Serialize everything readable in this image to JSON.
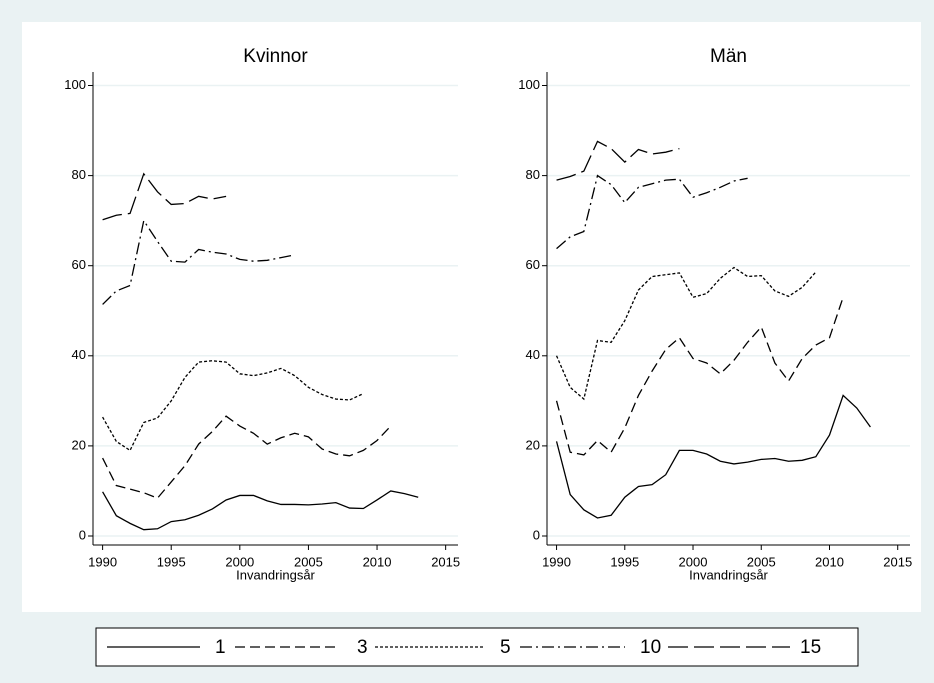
{
  "chart_data": [
    {
      "type": "line",
      "title": "Kvinnor",
      "x_label": "Invandringsår",
      "x": [
        1990,
        1991,
        1992,
        1993,
        1994,
        1995,
        1996,
        1997,
        1998,
        1999,
        2000,
        2001,
        2002,
        2003,
        2004,
        2005,
        2006,
        2007,
        2008,
        2009,
        2010,
        2011,
        2012,
        2013
      ],
      "xlim": [
        1989.3,
        2015.9
      ],
      "xticks": [
        1990,
        1995,
        2000,
        2005,
        2010,
        2015
      ],
      "ylim": [
        -2,
        103
      ],
      "yticks": [
        0,
        20,
        40,
        60,
        80,
        100
      ],
      "grid": true,
      "series": [
        {
          "name": "1",
          "color": "#000000",
          "dash": "none",
          "values": [
            9.8,
            4.5,
            2.8,
            1.4,
            1.6,
            3.2,
            3.6,
            4.6,
            6,
            8,
            9,
            9,
            7.8,
            7,
            7,
            6.9,
            7.1,
            7.4,
            6.2,
            6.1,
            8,
            10,
            9.4,
            8.6
          ]
        },
        {
          "name": "3",
          "color": "#000000",
          "dash": "10,5",
          "values": [
            17.3,
            11.2,
            10.4,
            9.6,
            8.4,
            12,
            15.6,
            20.4,
            23.2,
            26.6,
            24.4,
            22.8,
            20.4,
            21.8,
            22.8,
            22,
            19.3,
            18.2,
            17.8,
            19,
            21.2,
            24.4,
            null,
            null
          ]
        },
        {
          "name": "5",
          "color": "#000000",
          "dash": "3,2",
          "values": [
            26.4,
            21,
            19,
            25.2,
            26.2,
            30,
            35.2,
            38.6,
            38.9,
            38.6,
            36,
            35.6,
            36.2,
            37.2,
            35.6,
            33,
            31.4,
            30.4,
            30.2,
            31.6,
            null,
            null,
            null,
            null
          ]
        },
        {
          "name": "10",
          "color": "#000000",
          "dash": "12,4,2,4",
          "values": [
            51.4,
            54.4,
            55.6,
            70,
            65.4,
            61,
            60.8,
            63.6,
            63,
            62.6,
            61.4,
            61,
            61.2,
            61.8,
            62.4,
            null,
            null,
            null,
            null,
            null,
            null,
            null,
            null,
            null
          ]
        },
        {
          "name": "15",
          "color": "#000000",
          "dash": "20,6",
          "values": [
            70.2,
            71.2,
            71.6,
            80.4,
            76.4,
            73.6,
            73.8,
            75.4,
            74.8,
            75.4,
            null,
            null,
            null,
            null,
            null,
            null,
            null,
            null,
            null,
            null,
            null,
            null,
            null,
            null
          ]
        }
      ]
    },
    {
      "type": "line",
      "title": "Män",
      "x_label": "Invandringsår",
      "x": [
        1990,
        1991,
        1992,
        1993,
        1994,
        1995,
        1996,
        1997,
        1998,
        1999,
        2000,
        2001,
        2002,
        2003,
        2004,
        2005,
        2006,
        2007,
        2008,
        2009,
        2010,
        2011,
        2012,
        2013
      ],
      "xlim": [
        1989.3,
        2015.9
      ],
      "xticks": [
        1990,
        1995,
        2000,
        2005,
        2010,
        2015
      ],
      "ylim": [
        -2,
        103
      ],
      "yticks": [
        0,
        20,
        40,
        60,
        80,
        100
      ],
      "grid": true,
      "series": [
        {
          "name": "1",
          "color": "#000000",
          "dash": "none",
          "values": [
            21,
            9.2,
            5.8,
            4,
            4.6,
            8.6,
            11,
            11.4,
            13.6,
            19,
            19,
            18.2,
            16.6,
            16,
            16.4,
            17,
            17.2,
            16.6,
            16.8,
            17.6,
            22.4,
            31.2,
            28.4,
            24.2
          ]
        },
        {
          "name": "3",
          "color": "#000000",
          "dash": "10,5",
          "values": [
            30,
            18.6,
            18,
            21.2,
            18.6,
            24,
            31.2,
            36.6,
            41.4,
            44,
            39.4,
            38.4,
            36,
            39,
            43,
            46.4,
            38.4,
            34.4,
            39.4,
            42.4,
            44,
            53,
            null,
            null
          ]
        },
        {
          "name": "5",
          "color": "#000000",
          "dash": "3,2",
          "values": [
            40,
            33,
            30.4,
            43.4,
            43,
            47.8,
            54.6,
            57.6,
            58,
            58.4,
            53,
            53.8,
            57.2,
            59.6,
            57.6,
            57.8,
            54.4,
            53.2,
            55.2,
            58.6,
            null,
            null,
            null,
            null
          ]
        },
        {
          "name": "10",
          "color": "#000000",
          "dash": "12,4,2,4",
          "values": [
            63.8,
            66.4,
            67.6,
            80,
            78,
            74,
            77.4,
            78.2,
            79,
            79.2,
            75.2,
            76.2,
            77.4,
            78.8,
            79.4,
            null,
            null,
            null,
            null,
            null,
            null,
            null,
            null,
            null
          ]
        },
        {
          "name": "15",
          "color": "#000000",
          "dash": "20,6",
          "values": [
            79,
            79.8,
            81,
            87.6,
            86,
            83,
            85.8,
            84.8,
            85.2,
            86,
            null,
            null,
            null,
            null,
            null,
            null,
            null,
            null,
            null,
            null,
            null,
            null,
            null,
            null
          ]
        }
      ]
    }
  ]
}
